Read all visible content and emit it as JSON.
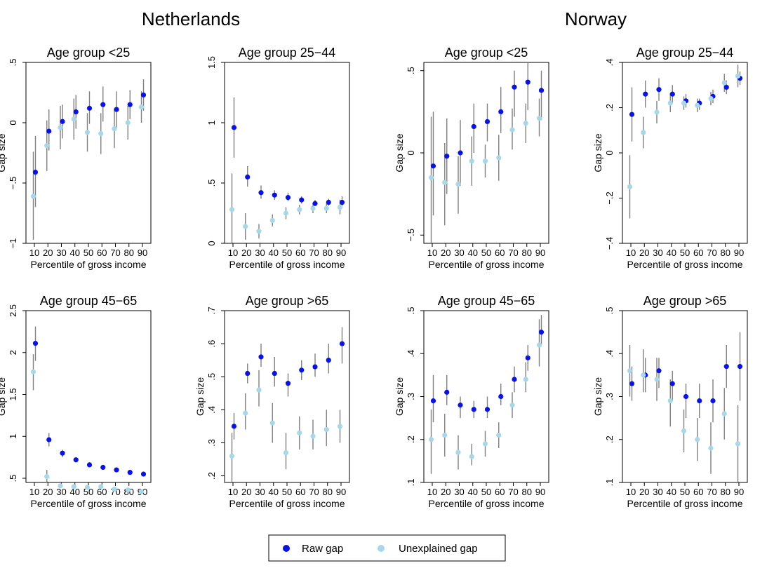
{
  "country_titles": [
    "Netherlands",
    "Norway"
  ],
  "legend": {
    "raw_label": "Raw gap",
    "unexplained_label": "Unexplained gap",
    "raw_color": "#0a14dc",
    "unexplained_color": "#a8d8e8"
  },
  "colors": {
    "whisker": "#808080"
  },
  "chart_data": [
    {
      "type": "scatter",
      "title": "Age group <25",
      "country": "Netherlands",
      "xlabel": "Percentile of gross income",
      "ylabel": "Gap size",
      "x": [
        10,
        20,
        30,
        40,
        50,
        60,
        70,
        80,
        90
      ],
      "ylim": [
        -1,
        0.5
      ],
      "yticks": [
        -1,
        -0.5,
        0,
        0.5
      ],
      "ytick_labels": [
        "−1",
        "−.5",
        "0",
        ".5"
      ],
      "series": [
        {
          "name": "Raw gap",
          "values": [
            -0.41,
            -0.07,
            0.01,
            0.09,
            0.12,
            0.15,
            0.11,
            0.15,
            0.23
          ],
          "low": [
            -0.7,
            -0.23,
            -0.13,
            -0.05,
            -0.01,
            0.01,
            -0.04,
            0.03,
            0.1
          ],
          "high": [
            -0.11,
            0.11,
            0.15,
            0.23,
            0.26,
            0.3,
            0.26,
            0.27,
            0.36
          ]
        },
        {
          "name": "Unexplained gap",
          "values": [
            -0.61,
            -0.19,
            -0.04,
            0.03,
            -0.08,
            -0.09,
            -0.05,
            0.0,
            0.13
          ],
          "low": [
            -0.97,
            -0.4,
            -0.22,
            -0.14,
            -0.24,
            -0.26,
            -0.21,
            -0.14,
            0.0
          ],
          "high": [
            -0.24,
            0.02,
            0.14,
            0.2,
            0.08,
            0.08,
            0.11,
            0.14,
            0.26
          ]
        }
      ]
    },
    {
      "type": "scatter",
      "title": "Age group 25−44",
      "country": "Netherlands",
      "xlabel": "Percentile of gross income",
      "ylabel": "",
      "x": [
        10,
        20,
        30,
        40,
        50,
        60,
        70,
        80,
        90
      ],
      "ylim": [
        0,
        1.5
      ],
      "yticks": [
        0,
        0.5,
        1,
        1.5
      ],
      "ytick_labels": [
        "0",
        ".5",
        "1",
        "1.5"
      ],
      "series": [
        {
          "name": "Raw gap",
          "values": [
            0.96,
            0.55,
            0.42,
            0.4,
            0.38,
            0.36,
            0.33,
            0.34,
            0.34
          ],
          "low": [
            0.71,
            0.47,
            0.37,
            0.36,
            0.35,
            0.33,
            0.31,
            0.31,
            0.3
          ],
          "high": [
            1.21,
            0.64,
            0.48,
            0.44,
            0.42,
            0.39,
            0.36,
            0.37,
            0.39
          ]
        },
        {
          "name": "Unexplained gap",
          "values": [
            0.28,
            0.14,
            0.1,
            0.19,
            0.25,
            0.28,
            0.29,
            0.29,
            0.3
          ],
          "low": [
            0.0,
            0.03,
            0.04,
            0.14,
            0.2,
            0.24,
            0.25,
            0.25,
            0.24
          ],
          "high": [
            0.58,
            0.25,
            0.16,
            0.24,
            0.3,
            0.32,
            0.33,
            0.33,
            0.36
          ]
        }
      ]
    },
    {
      "type": "scatter",
      "title": "Age group <25",
      "country": "Norway",
      "xlabel": "Percentile of gross income",
      "ylabel": "Gap size",
      "x": [
        10,
        20,
        30,
        40,
        50,
        60,
        70,
        80,
        90
      ],
      "ylim": [
        -0.55,
        0.55
      ],
      "yticks": [
        -0.5,
        0,
        0.5
      ],
      "ytick_labels": [
        "−.5",
        "0",
        ".5"
      ],
      "series": [
        {
          "name": "Raw gap",
          "values": [
            -0.08,
            -0.02,
            0.0,
            0.16,
            0.19,
            0.25,
            0.4,
            0.43,
            0.38
          ],
          "low": [
            -0.38,
            -0.25,
            -0.2,
            0.0,
            0.07,
            0.12,
            0.22,
            0.26,
            0.2
          ],
          "high": [
            0.25,
            0.21,
            0.2,
            0.3,
            0.3,
            0.4,
            0.5,
            0.55,
            0.5
          ]
        },
        {
          "name": "Unexplained gap",
          "values": [
            -0.15,
            -0.18,
            -0.19,
            -0.05,
            -0.05,
            -0.03,
            0.14,
            0.18,
            0.21
          ],
          "low": [
            -0.55,
            -0.44,
            -0.37,
            -0.2,
            -0.15,
            -0.17,
            0.02,
            0.06,
            0.1
          ],
          "high": [
            0.22,
            0.06,
            -0.02,
            0.1,
            0.05,
            0.11,
            0.27,
            0.3,
            0.33
          ]
        }
      ]
    },
    {
      "type": "scatter",
      "title": "Age group 25−44",
      "country": "Norway",
      "xlabel": "Percentile of gross income",
      "ylabel": "Gap size",
      "x": [
        10,
        20,
        30,
        40,
        50,
        60,
        70,
        80,
        90
      ],
      "ylim": [
        -0.4,
        0.4
      ],
      "yticks": [
        -0.4,
        -0.2,
        0,
        0.2,
        0.4
      ],
      "ytick_labels": [
        "−.4",
        "−.2",
        "0",
        ".2",
        ".4"
      ],
      "series": [
        {
          "name": "Raw gap",
          "values": [
            0.17,
            0.26,
            0.28,
            0.26,
            0.23,
            0.22,
            0.25,
            0.29,
            0.33
          ],
          "low": [
            0.05,
            0.2,
            0.23,
            0.22,
            0.2,
            0.19,
            0.22,
            0.26,
            0.3
          ],
          "high": [
            0.29,
            0.32,
            0.33,
            0.3,
            0.26,
            0.24,
            0.28,
            0.32,
            0.36
          ]
        },
        {
          "name": "Unexplained gap",
          "values": [
            -0.15,
            0.09,
            0.18,
            0.22,
            0.22,
            0.21,
            0.24,
            0.31,
            0.34
          ],
          "low": [
            -0.29,
            0.02,
            0.13,
            0.18,
            0.19,
            0.18,
            0.21,
            0.27,
            0.29
          ],
          "high": [
            -0.01,
            0.16,
            0.23,
            0.26,
            0.25,
            0.24,
            0.27,
            0.35,
            0.39
          ]
        }
      ]
    },
    {
      "type": "scatter",
      "title": "Age group 45−65",
      "country": "Netherlands",
      "xlabel": "Percentile of gross income",
      "ylabel": "Gap size",
      "x": [
        10,
        20,
        30,
        40,
        50,
        60,
        70,
        80,
        90
      ],
      "ylim": [
        0.45,
        2.5
      ],
      "yticks": [
        0.5,
        1,
        1.5,
        2,
        2.5
      ],
      "ytick_labels": [
        ".5",
        "1",
        "1.5",
        "2",
        "2.5"
      ],
      "series": [
        {
          "name": "Raw gap",
          "values": [
            2.11,
            0.96,
            0.8,
            0.72,
            0.66,
            0.63,
            0.6,
            0.57,
            0.55
          ],
          "low": [
            1.9,
            0.88,
            0.75,
            0.69,
            0.64,
            0.61,
            0.58,
            0.55,
            0.53
          ],
          "high": [
            2.31,
            1.04,
            0.84,
            0.75,
            0.69,
            0.66,
            0.62,
            0.6,
            0.58
          ]
        },
        {
          "name": "Unexplained gap",
          "values": [
            1.77,
            0.52,
            0.41,
            0.4,
            0.39,
            0.4,
            0.37,
            0.36,
            0.34
          ],
          "low": [
            1.55,
            0.44,
            0.36,
            0.36,
            0.36,
            0.37,
            0.34,
            0.33,
            0.31
          ],
          "high": [
            1.98,
            0.6,
            0.46,
            0.44,
            0.43,
            0.44,
            0.41,
            0.4,
            0.38
          ]
        }
      ]
    },
    {
      "type": "scatter",
      "title": "Age group >65",
      "country": "Netherlands",
      "xlabel": "Percentile of gross income",
      "ylabel": "Gap size",
      "x": [
        10,
        20,
        30,
        40,
        50,
        60,
        70,
        80,
        90
      ],
      "ylim": [
        0.18,
        0.7
      ],
      "yticks": [
        0.2,
        0.3,
        0.4,
        0.5,
        0.6,
        0.7
      ],
      "ytick_labels": [
        ".2",
        ".3",
        ".4",
        ".5",
        ".6",
        ".7"
      ],
      "series": [
        {
          "name": "Raw gap",
          "values": [
            0.35,
            0.51,
            0.56,
            0.51,
            0.48,
            0.52,
            0.53,
            0.55,
            0.6
          ],
          "low": [
            0.31,
            0.48,
            0.53,
            0.47,
            0.44,
            0.49,
            0.5,
            0.51,
            0.54
          ],
          "high": [
            0.39,
            0.54,
            0.6,
            0.56,
            0.51,
            0.55,
            0.57,
            0.6,
            0.65
          ]
        },
        {
          "name": "Unexplained gap",
          "values": [
            0.26,
            0.39,
            0.46,
            0.36,
            0.27,
            0.33,
            0.32,
            0.34,
            0.35
          ],
          "low": [
            0.18,
            0.34,
            0.41,
            0.3,
            0.22,
            0.28,
            0.28,
            0.29,
            0.3
          ],
          "high": [
            0.33,
            0.45,
            0.52,
            0.42,
            0.33,
            0.38,
            0.37,
            0.4,
            0.4
          ]
        }
      ]
    },
    {
      "type": "scatter",
      "title": "Age group 45−65",
      "country": "Norway",
      "xlabel": "Percentile of gross income",
      "ylabel": "Gap size",
      "x": [
        10,
        20,
        30,
        40,
        50,
        60,
        70,
        80,
        90
      ],
      "ylim": [
        0.1,
        0.5
      ],
      "yticks": [
        0.1,
        0.2,
        0.3,
        0.4,
        0.5
      ],
      "ytick_labels": [
        ".1",
        ".2",
        ".3",
        ".4",
        ".5"
      ],
      "series": [
        {
          "name": "Raw gap",
          "values": [
            0.29,
            0.31,
            0.28,
            0.27,
            0.27,
            0.3,
            0.34,
            0.39,
            0.45
          ],
          "low": [
            0.24,
            0.28,
            0.25,
            0.25,
            0.25,
            0.28,
            0.31,
            0.36,
            0.42
          ],
          "high": [
            0.35,
            0.35,
            0.3,
            0.29,
            0.3,
            0.33,
            0.37,
            0.42,
            0.49
          ]
        },
        {
          "name": "Unexplained gap",
          "values": [
            0.2,
            0.21,
            0.17,
            0.16,
            0.19,
            0.21,
            0.28,
            0.34,
            0.42
          ],
          "low": [
            0.12,
            0.16,
            0.13,
            0.14,
            0.16,
            0.18,
            0.25,
            0.31,
            0.37
          ],
          "high": [
            0.27,
            0.26,
            0.21,
            0.19,
            0.22,
            0.24,
            0.31,
            0.38,
            0.48
          ]
        }
      ]
    },
    {
      "type": "scatter",
      "title": "Age group >65",
      "country": "Norway",
      "xlabel": "Percentile of gross income",
      "ylabel": "Gap size",
      "x": [
        10,
        20,
        30,
        40,
        50,
        60,
        70,
        80,
        90
      ],
      "ylim": [
        0.1,
        0.5
      ],
      "yticks": [
        0.1,
        0.2,
        0.3,
        0.4,
        0.5
      ],
      "ytick_labels": [
        ".1",
        ".2",
        ".3",
        ".4",
        ".5"
      ],
      "series": [
        {
          "name": "Raw gap",
          "values": [
            0.33,
            0.35,
            0.36,
            0.33,
            0.3,
            0.29,
            0.29,
            0.37,
            0.37
          ],
          "low": [
            0.29,
            0.31,
            0.32,
            0.29,
            0.25,
            0.25,
            0.24,
            0.32,
            0.29
          ],
          "high": [
            0.37,
            0.39,
            0.39,
            0.36,
            0.33,
            0.33,
            0.34,
            0.42,
            0.45
          ]
        },
        {
          "name": "Unexplained gap",
          "values": [
            0.36,
            0.35,
            0.34,
            0.29,
            0.22,
            0.2,
            0.18,
            0.26,
            0.19
          ],
          "low": [
            0.3,
            0.31,
            0.29,
            0.23,
            0.17,
            0.15,
            0.12,
            0.2,
            0.1
          ],
          "high": [
            0.42,
            0.41,
            0.39,
            0.34,
            0.27,
            0.25,
            0.24,
            0.32,
            0.28
          ]
        }
      ]
    }
  ]
}
